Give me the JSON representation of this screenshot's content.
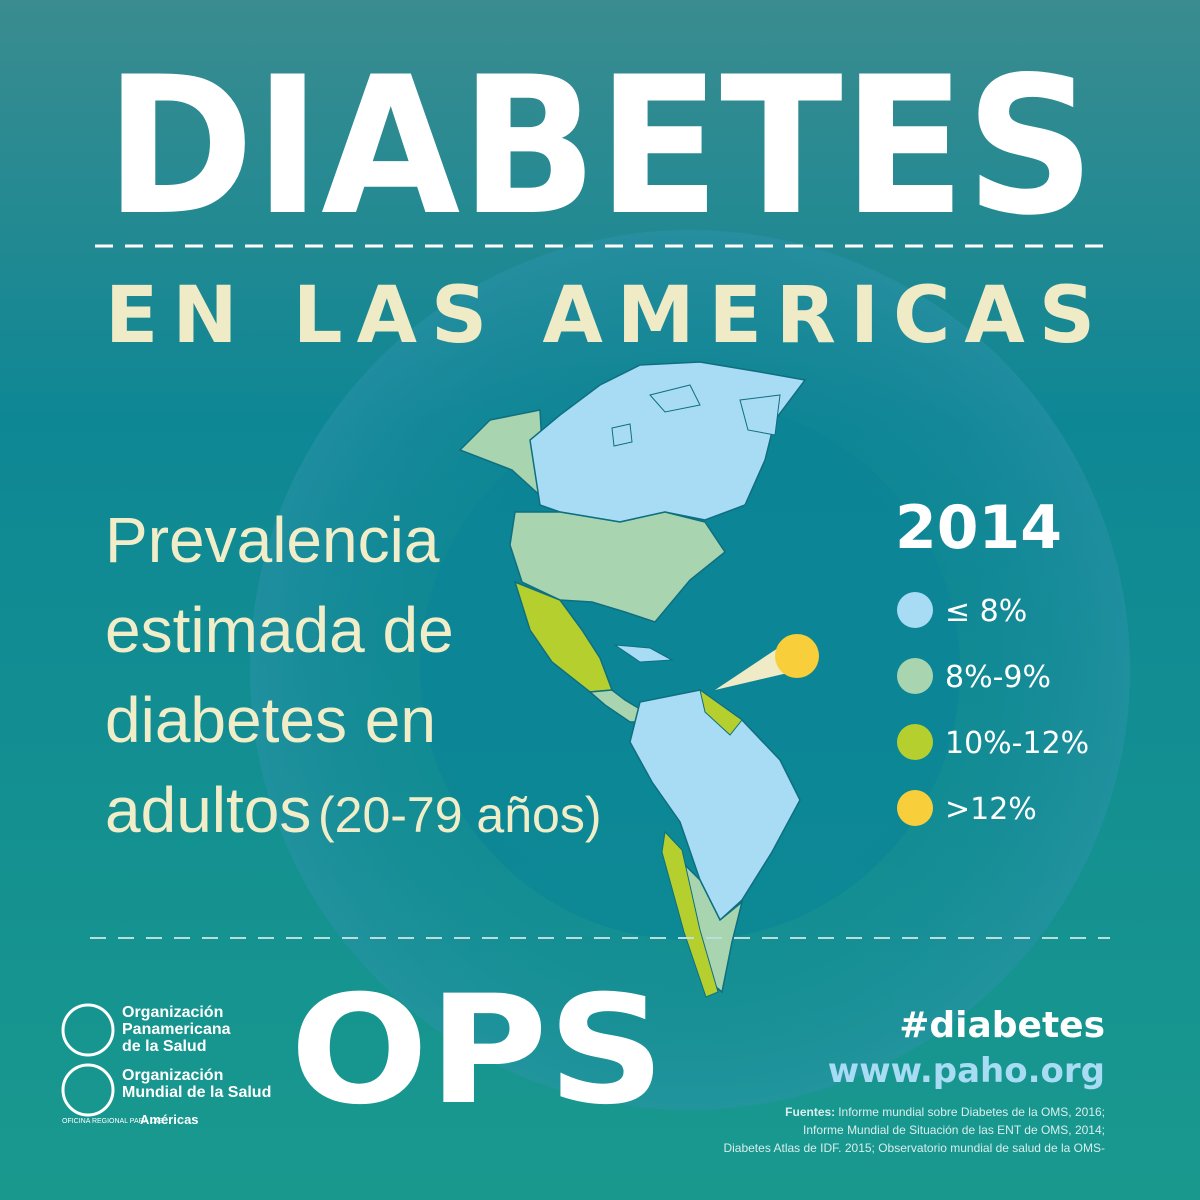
{
  "header": {
    "title": "DIABETES",
    "subtitle": "EN LAS AMERICAS"
  },
  "description": {
    "lines": [
      "Prevalencia",
      "estimada de",
      "diabetes en",
      "adultos"
    ],
    "age_range": "(20-79 años)"
  },
  "legend": {
    "year": "2014",
    "items": [
      {
        "label": "≤ 8%",
        "color": "#a8dcf5"
      },
      {
        "label": "8%-9%",
        "color": "#a8d5b0"
      },
      {
        "label": "10%-12%",
        "color": "#b5cf2e"
      },
      {
        "label": ">12%",
        "color": "#f8cf3a"
      }
    ]
  },
  "footer": {
    "org1": [
      "Organización",
      "Panamericana",
      "de la Salud"
    ],
    "org2": [
      "Organización",
      "Mundial de la Salud"
    ],
    "regional_office": "OFICINA REGIONAL PARA LAS",
    "region": "Américas",
    "acronym": "OPS",
    "hashtag": "#diabetes",
    "url": "www.paho.org",
    "sources_label": "Fuentes:",
    "sources": [
      "Informe mundial sobre Diabetes de la OMS, 2016;",
      "Informe Mundial de Situación de las ENT de OMS, 2014;",
      "Diabetes Atlas de IDF. 2015; Observatorio mundial de salud de la OMS-"
    ]
  }
}
